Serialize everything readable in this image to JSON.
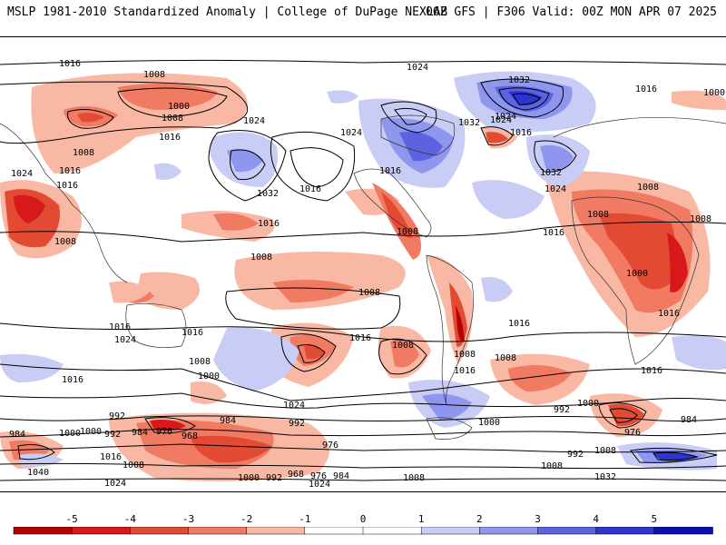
{
  "header": {
    "title_left": "MSLP 1981-2010 Standardized Anomaly | College of DuPage NEXLAB",
    "title_right": "06Z GFS | F306 Valid: 00Z MON APR 07 2025"
  },
  "colors": {
    "neg5": "#b30000",
    "neg4": "#d7191c",
    "neg3": "#e34a33",
    "neg2": "#f07a62",
    "neg1": "#f9b8a4",
    "zero": "#ffffff",
    "pos1": "#c9ccf5",
    "pos2": "#8f96ee",
    "pos3": "#5d63e0",
    "pos4": "#2e34cf",
    "pos5": "#0a0fb0",
    "contour": "#000000",
    "coast": "#333333"
  },
  "colorbar": {
    "ticks": [
      "-5",
      "-4",
      "-3",
      "-2",
      "-1",
      "0",
      "1",
      "2",
      "3",
      "4",
      "5"
    ],
    "range": [
      -5,
      5
    ]
  },
  "isobar_labels": [
    "1016",
    "1008",
    "1024",
    "1032",
    "1016",
    "1000",
    "1000",
    "1008",
    "1016",
    "1024",
    "1016",
    "1024",
    "1016",
    "1024",
    "1008",
    "1032",
    "1016",
    "1024",
    "1016",
    "1016",
    "1008",
    "1008",
    "1008",
    "1016",
    "1008",
    "1008",
    "1016",
    "1024",
    "1016",
    "1008",
    "1016",
    "1008",
    "1000",
    "1016",
    "1024",
    "1008",
    "992",
    "1000",
    "984",
    "992",
    "976",
    "984",
    "992",
    "968",
    "984",
    "976",
    "1000",
    "992",
    "968",
    "976",
    "984",
    "1008",
    "1000",
    "992",
    "1008",
    "1032",
    "1016",
    "1000",
    "984",
    "976",
    "992",
    "1008",
    "1040",
    "1024",
    "1024",
    "1032",
    "1008",
    "1016",
    "1024",
    "1008",
    "1016",
    "1000",
    "1032",
    "1024",
    "1016",
    "1016",
    "1008",
    "1016",
    "1008",
    "1000"
  ]
}
